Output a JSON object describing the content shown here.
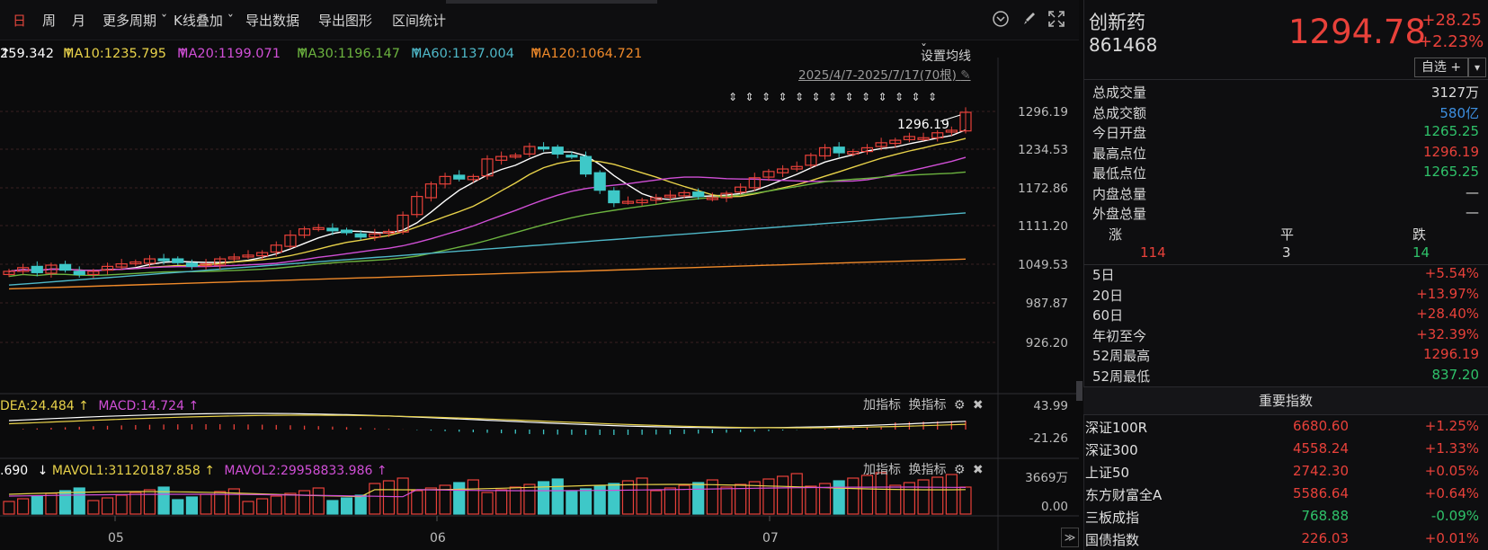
{
  "toolbar": {
    "items": [
      "日",
      "周",
      "月",
      "更多周期",
      "K线叠加",
      "导出数据",
      "导出图形",
      "区间统计"
    ]
  },
  "ma": {
    "ma5": "259.342",
    "ma10": "MA10:1235.795",
    "ma20": "MA20:1199.071",
    "ma30": "MA30:1196.147",
    "ma60": "MA60:1137.004",
    "ma120": "MA120:1064.721",
    "setting": "设置均线",
    "arrow": "↑"
  },
  "date_range": "2025/4/7-2025/7/17(70根)",
  "price_axis": [
    "1296.19",
    "1234.53",
    "1172.86",
    "1111.20",
    "1049.53",
    "987.87",
    "926.20"
  ],
  "high_label": "1296.19",
  "macd": {
    "dea": "DEA:24.484",
    "macd": "MACD:14.724",
    "axis_top": "43.99",
    "axis_bottom": "-21.26"
  },
  "vol": {
    "vol": ".690",
    "mavol1": "MAVOL1:31120187.858",
    "mavol2": "MAVOL2:29958833.986",
    "axis_top": "3669万",
    "axis_bottom": "0.00"
  },
  "panel_tools": {
    "add": "加指标",
    "switch": "换指标"
  },
  "months": [
    "05",
    "06",
    "07"
  ],
  "stock": {
    "name": "创新药",
    "code": "861468",
    "price": "1294.78",
    "change": "+28.25",
    "pct": "+2.23%",
    "watch": "自选 +"
  },
  "stats": [
    {
      "label": "总成交量",
      "value": "3127万",
      "color": "white"
    },
    {
      "label": "总成交额",
      "value": "580亿",
      "color": "blue"
    },
    {
      "label": "今日开盘",
      "value": "1265.25",
      "color": "green"
    },
    {
      "label": "最高点位",
      "value": "1296.19",
      "color": "red"
    },
    {
      "label": "最低点位",
      "value": "1265.25",
      "color": "green"
    },
    {
      "label": "内盘总量",
      "value": "—",
      "color": "white"
    },
    {
      "label": "外盘总量",
      "value": "—",
      "color": "white"
    }
  ],
  "breadth": {
    "up_label": "涨",
    "flat_label": "平",
    "down_label": "跌",
    "up": "114",
    "flat": "3",
    "down": "14"
  },
  "returns": [
    {
      "label": "5日",
      "value": "+5.54%",
      "color": "red"
    },
    {
      "label": "20日",
      "value": "+13.97%",
      "color": "red"
    },
    {
      "label": "60日",
      "value": "+28.40%",
      "color": "red"
    },
    {
      "label": "年初至今",
      "value": "+32.39%",
      "color": "red"
    },
    {
      "label": "52周最高",
      "value": "1296.19",
      "color": "red"
    },
    {
      "label": "52周最低",
      "value": "837.20",
      "color": "green"
    }
  ],
  "indices_title": "重要指数",
  "indices": [
    {
      "name": "深证100R",
      "value": "6680.60",
      "pct": "+1.25%",
      "vcolor": "red",
      "pcolor": "red"
    },
    {
      "name": "深证300",
      "value": "4558.24",
      "pct": "+1.33%",
      "vcolor": "red",
      "pcolor": "red"
    },
    {
      "name": "上证50",
      "value": "2742.30",
      "pct": "+0.05%",
      "vcolor": "red",
      "pcolor": "red"
    },
    {
      "name": "东方财富全A",
      "value": "5586.64",
      "pct": "+0.64%",
      "vcolor": "red",
      "pcolor": "red"
    },
    {
      "name": "三板成指",
      "value": "768.88",
      "pct": "-0.09%",
      "vcolor": "green",
      "pcolor": "green"
    },
    {
      "name": "国债指数",
      "value": "226.03",
      "pct": "+0.01%",
      "vcolor": "red",
      "pcolor": "red"
    }
  ],
  "colors": {
    "up": "#e8413a",
    "down": "#3ec8c8",
    "ma5": "#ffffff",
    "ma10": "#e8d24a",
    "ma20": "#d04fd6",
    "ma30": "#6cb33f",
    "ma60": "#4fb8c8",
    "ma120": "#f08a2a"
  }
}
